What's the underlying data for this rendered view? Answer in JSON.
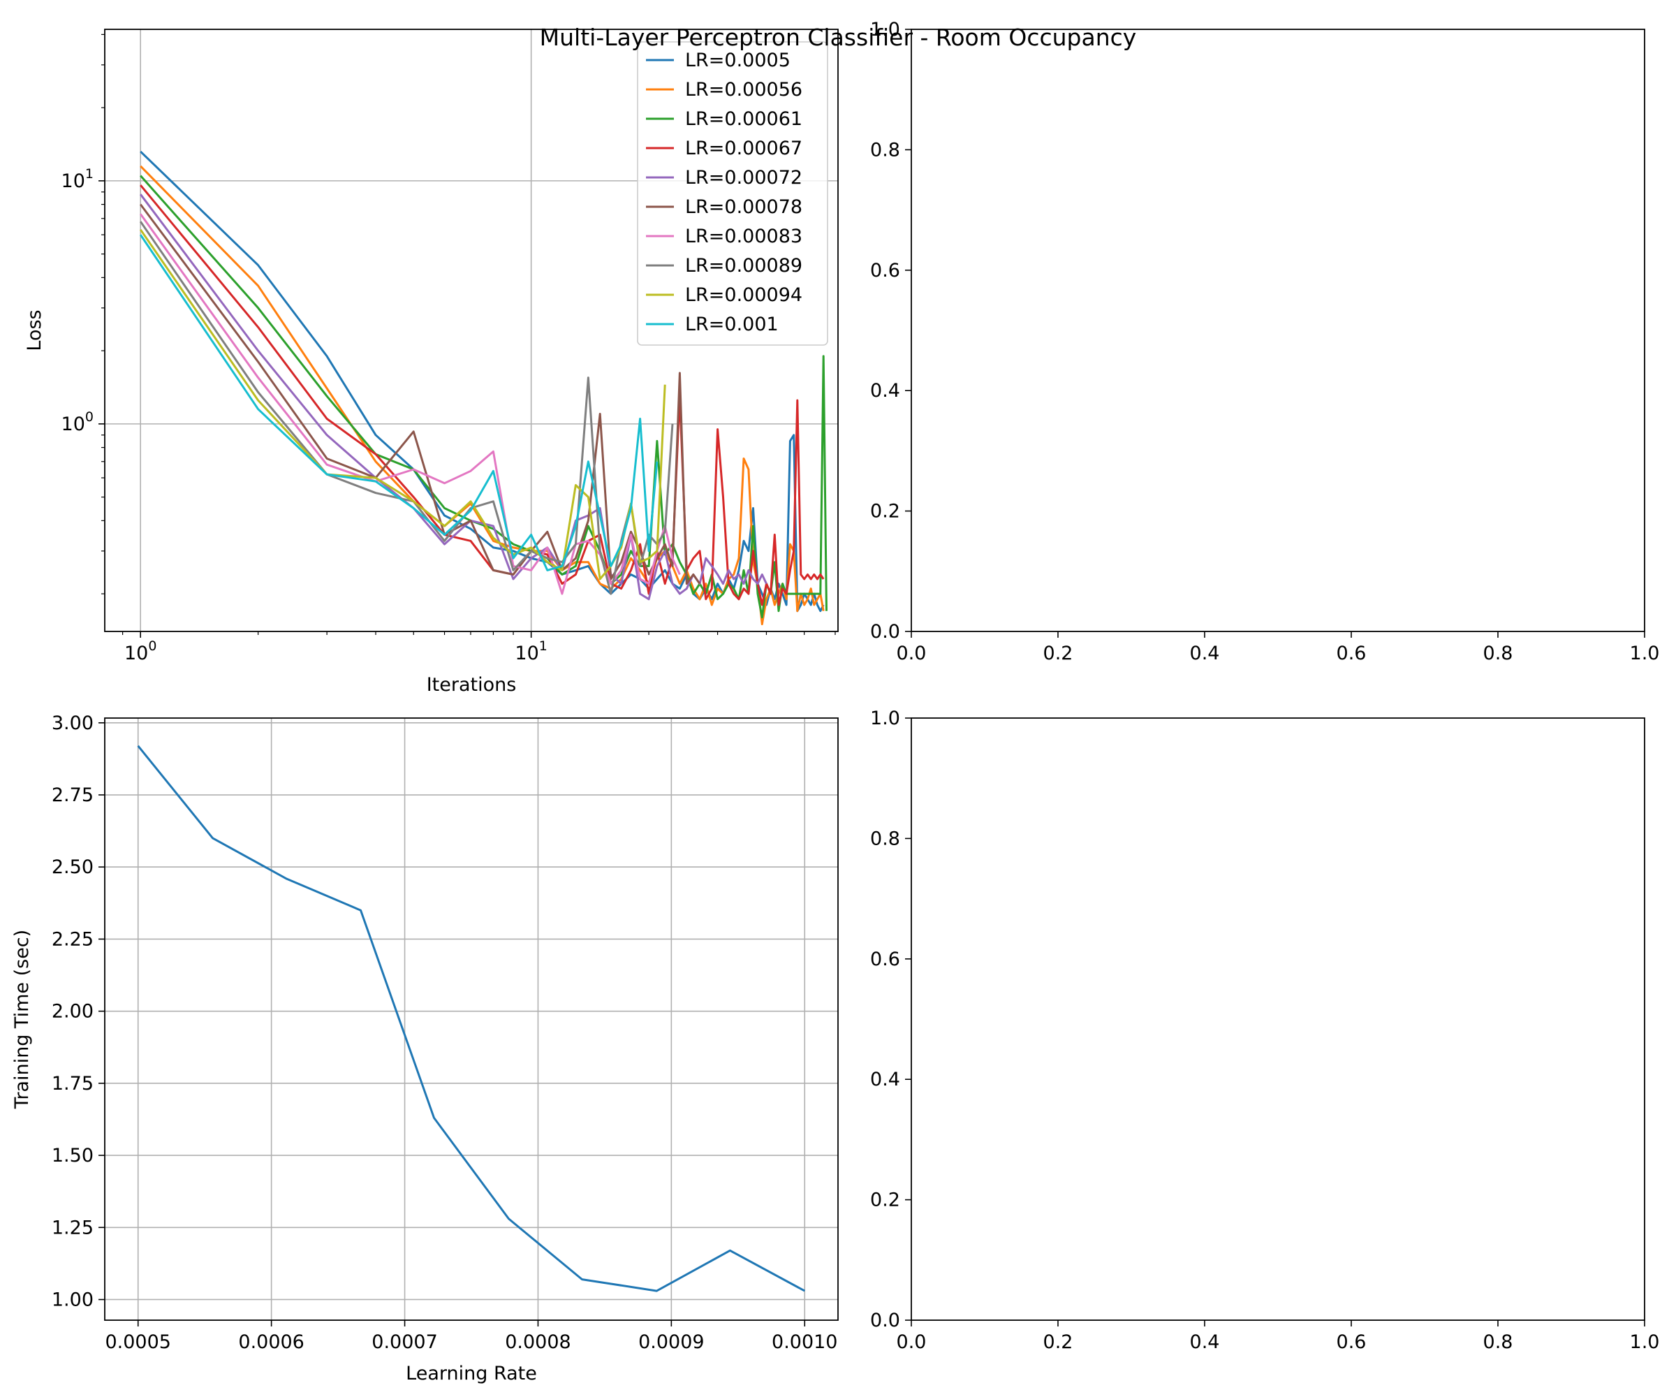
{
  "chart_data": [
    {
      "type": "line",
      "xlabel": "Iterations",
      "ylabel": "Loss",
      "xscale": "log",
      "yscale": "log",
      "xlim": [
        0.81,
        61
      ],
      "ylim": [
        0.14,
        42
      ],
      "x_ticks": [
        {
          "base": "10",
          "exp": "0"
        },
        {
          "base": "10",
          "exp": "1"
        }
      ],
      "y_ticks": [
        {
          "base": "10",
          "exp": "0"
        },
        {
          "base": "10",
          "exp": "1"
        }
      ],
      "grid": true,
      "legend": "top-right",
      "series": [
        {
          "name": "LR=0.0005",
          "color": "#1f77b4",
          "x": [
            1,
            2,
            3,
            4,
            5,
            6,
            7,
            8,
            9,
            10,
            11,
            12,
            13,
            14,
            15,
            16,
            17,
            18,
            19,
            20,
            21,
            22,
            23,
            24,
            25,
            26,
            27,
            28,
            29,
            30,
            31,
            32,
            33,
            34,
            35,
            36,
            37,
            38,
            39,
            40,
            41,
            42,
            43,
            44,
            45,
            46,
            47,
            48,
            49,
            50,
            51,
            52,
            53,
            54,
            55,
            56
          ],
          "y": [
            13.2,
            4.5,
            1.9,
            0.9,
            0.65,
            0.42,
            0.37,
            0.31,
            0.3,
            0.28,
            0.27,
            0.24,
            0.25,
            0.26,
            0.22,
            0.2,
            0.22,
            0.24,
            0.23,
            0.21,
            0.23,
            0.25,
            0.22,
            0.21,
            0.24,
            0.2,
            0.19,
            0.21,
            0.19,
            0.22,
            0.2,
            0.23,
            0.21,
            0.25,
            0.33,
            0.3,
            0.45,
            0.22,
            0.2,
            0.18,
            0.21,
            0.19,
            0.22,
            0.2,
            0.18,
            0.85,
            0.9,
            0.17,
            0.18,
            0.2,
            0.19,
            0.18,
            0.2,
            0.18,
            0.17,
            0.18
          ]
        },
        {
          "name": "LR=0.00056",
          "color": "#ff7f0e",
          "x": [
            1,
            2,
            3,
            4,
            5,
            6,
            7,
            8,
            9,
            10,
            11,
            12,
            13,
            14,
            15,
            16,
            17,
            18,
            19,
            20,
            21,
            22,
            23,
            24,
            25,
            26,
            27,
            28,
            29,
            30,
            31,
            32,
            33,
            34,
            35,
            36,
            37,
            38,
            39,
            40,
            41,
            42,
            43,
            44,
            45,
            46,
            47,
            48,
            49,
            50,
            51,
            52,
            53,
            54,
            55,
            56
          ],
          "y": [
            11.5,
            3.7,
            1.4,
            0.7,
            0.48,
            0.38,
            0.47,
            0.33,
            0.31,
            0.3,
            0.3,
            0.25,
            0.27,
            0.27,
            0.22,
            0.21,
            0.23,
            0.28,
            0.25,
            0.22,
            0.28,
            0.3,
            0.26,
            0.22,
            0.25,
            0.21,
            0.19,
            0.22,
            0.18,
            0.21,
            0.2,
            0.23,
            0.24,
            0.28,
            0.72,
            0.65,
            0.27,
            0.22,
            0.15,
            0.19,
            0.21,
            0.18,
            0.2,
            0.22,
            0.19,
            0.32,
            0.3,
            0.17,
            0.2,
            0.18,
            0.19,
            0.21,
            0.18,
            0.19,
            0.2,
            0.17
          ]
        },
        {
          "name": "LR=0.00061",
          "color": "#2ca02c",
          "x": [
            1,
            2,
            3,
            4,
            5,
            6,
            7,
            8,
            9,
            10,
            11,
            12,
            13,
            14,
            15,
            16,
            17,
            18,
            19,
            20,
            21,
            22,
            23,
            24,
            25,
            26,
            27,
            28,
            29,
            30,
            31,
            32,
            33,
            34,
            35,
            36,
            37,
            38,
            39,
            40,
            41,
            42,
            43,
            44,
            45,
            46,
            47,
            48,
            49,
            50,
            51,
            52,
            53,
            54,
            55,
            56,
            57
          ],
          "y": [
            10.5,
            3.0,
            1.3,
            0.75,
            0.65,
            0.45,
            0.4,
            0.37,
            0.32,
            0.3,
            0.28,
            0.24,
            0.26,
            0.38,
            0.3,
            0.22,
            0.24,
            0.3,
            0.26,
            0.26,
            0.85,
            0.29,
            0.32,
            0.27,
            0.24,
            0.2,
            0.22,
            0.2,
            0.24,
            0.19,
            0.2,
            0.22,
            0.21,
            0.19,
            0.25,
            0.2,
            0.38,
            0.2,
            0.16,
            0.22,
            0.2,
            0.27,
            0.17,
            0.22,
            0.2,
            0.2,
            0.2,
            0.2,
            0.2,
            0.2,
            0.2,
            0.2,
            0.2,
            0.2,
            0.2,
            1.9,
            0.17
          ]
        },
        {
          "name": "LR=0.00067",
          "color": "#d62728",
          "x": [
            1,
            2,
            3,
            4,
            5,
            6,
            7,
            8,
            9,
            10,
            11,
            12,
            13,
            14,
            15,
            16,
            17,
            18,
            19,
            20,
            21,
            22,
            23,
            24,
            25,
            26,
            27,
            28,
            29,
            30,
            31,
            32,
            33,
            34,
            35,
            36,
            37,
            38,
            39,
            40,
            41,
            42,
            43,
            44,
            45,
            46,
            47,
            48,
            49,
            50,
            51,
            52,
            53,
            54,
            55,
            56
          ],
          "y": [
            9.6,
            2.5,
            1.05,
            0.75,
            0.5,
            0.35,
            0.33,
            0.25,
            0.24,
            0.3,
            0.29,
            0.22,
            0.24,
            0.33,
            0.35,
            0.22,
            0.21,
            0.25,
            0.32,
            0.2,
            0.3,
            0.22,
            0.28,
            1.3,
            0.25,
            0.28,
            0.3,
            0.19,
            0.21,
            0.95,
            0.5,
            0.22,
            0.2,
            0.19,
            0.21,
            0.2,
            0.3,
            0.22,
            0.18,
            0.22,
            0.2,
            0.35,
            0.18,
            0.21,
            0.2,
            0.25,
            0.3,
            1.25,
            0.24,
            0.23,
            0.24,
            0.23,
            0.24,
            0.23,
            0.24,
            0.23
          ]
        },
        {
          "name": "LR=0.00072",
          "color": "#9467bd",
          "x": [
            1,
            2,
            3,
            4,
            5,
            6,
            7,
            8,
            9,
            10,
            11,
            12,
            13,
            14,
            15,
            16,
            17,
            18,
            19,
            20,
            21,
            22,
            23,
            24,
            25,
            26,
            27,
            28,
            29,
            30,
            31,
            32,
            33,
            34,
            35,
            36,
            37,
            38,
            39,
            40
          ],
          "y": [
            8.8,
            2.0,
            0.9,
            0.6,
            0.45,
            0.32,
            0.4,
            0.38,
            0.23,
            0.28,
            0.31,
            0.25,
            0.4,
            0.42,
            0.45,
            0.24,
            0.22,
            0.35,
            0.2,
            0.19,
            0.26,
            0.3,
            0.22,
            0.2,
            0.21,
            0.24,
            0.22,
            0.28,
            0.26,
            0.24,
            0.22,
            0.25,
            0.23,
            0.24,
            0.22,
            0.25,
            0.23,
            0.22,
            0.24,
            0.22
          ]
        },
        {
          "name": "LR=0.00078",
          "color": "#8c564b",
          "x": [
            1,
            2,
            3,
            4,
            5,
            6,
            7,
            8,
            9,
            10,
            11,
            12,
            13,
            14,
            15,
            16,
            17,
            18,
            19,
            20,
            21,
            22,
            23,
            24,
            25,
            26,
            27
          ],
          "y": [
            8.0,
            1.8,
            0.72,
            0.6,
            0.93,
            0.35,
            0.4,
            0.25,
            0.24,
            0.3,
            0.36,
            0.25,
            0.28,
            0.4,
            1.1,
            0.23,
            0.27,
            0.36,
            0.3,
            0.24,
            0.28,
            0.32,
            0.26,
            1.62,
            0.22,
            0.24,
            0.22
          ]
        },
        {
          "name": "LR=0.00083",
          "color": "#e377c2",
          "x": [
            1,
            2,
            3,
            4,
            5,
            6,
            7,
            8,
            9,
            10,
            11,
            12,
            13,
            14,
            15,
            16,
            17,
            18,
            19,
            20,
            21,
            22,
            23,
            24
          ],
          "y": [
            7.3,
            1.55,
            0.68,
            0.58,
            0.65,
            0.57,
            0.64,
            0.77,
            0.26,
            0.25,
            0.31,
            0.2,
            0.32,
            0.33,
            0.29,
            0.22,
            0.25,
            0.35,
            0.23,
            0.22,
            0.3,
            0.38,
            0.28,
            0.24
          ]
        },
        {
          "name": "LR=0.00089",
          "color": "#7f7f7f",
          "x": [
            1,
            2,
            3,
            4,
            5,
            6,
            7,
            8,
            9,
            10,
            11,
            12,
            13,
            14,
            15,
            16,
            17,
            18,
            19,
            20,
            21,
            22,
            23
          ],
          "y": [
            6.8,
            1.35,
            0.62,
            0.52,
            0.48,
            0.33,
            0.45,
            0.48,
            0.25,
            0.3,
            0.28,
            0.27,
            0.32,
            1.55,
            0.3,
            0.2,
            0.33,
            0.47,
            0.26,
            0.35,
            0.32,
            0.36,
            1.0
          ]
        },
        {
          "name": "LR=0.00094",
          "color": "#bcbd22",
          "x": [
            1,
            2,
            3,
            4,
            5,
            6,
            7,
            8,
            9,
            10,
            11,
            12,
            13,
            14,
            15,
            16,
            17,
            18,
            19,
            20,
            21,
            22
          ],
          "y": [
            6.3,
            1.25,
            0.62,
            0.6,
            0.48,
            0.38,
            0.48,
            0.34,
            0.29,
            0.31,
            0.27,
            0.25,
            0.56,
            0.5,
            0.23,
            0.26,
            0.31,
            0.47,
            0.27,
            0.28,
            0.3,
            1.45
          ]
        },
        {
          "name": "LR=0.001",
          "color": "#17becf",
          "x": [
            1,
            2,
            3,
            4,
            5,
            6,
            7,
            8,
            9,
            10,
            11,
            12,
            13,
            14,
            15,
            16,
            17,
            18,
            19,
            20,
            21
          ],
          "y": [
            6.0,
            1.15,
            0.62,
            0.58,
            0.45,
            0.35,
            0.44,
            0.64,
            0.28,
            0.35,
            0.25,
            0.26,
            0.38,
            0.7,
            0.42,
            0.26,
            0.32,
            0.45,
            1.05,
            0.3,
            0.7
          ]
        }
      ]
    },
    {
      "type": "line",
      "xlim": [
        0,
        1
      ],
      "ylim": [
        0,
        1
      ],
      "x_ticks": [
        "0.0",
        "0.2",
        "0.4",
        "0.6",
        "0.8",
        "1.0"
      ],
      "y_ticks": [
        "0.0",
        "0.2",
        "0.4",
        "0.6",
        "0.8",
        "1.0"
      ],
      "grid": false,
      "series": []
    },
    {
      "type": "line",
      "xlabel": "Learning Rate",
      "ylabel": "Training Time (sec)",
      "xlim": [
        0.000475,
        0.001025
      ],
      "ylim": [
        0.9285,
        3.0165
      ],
      "x_ticks": [
        "0.0005",
        "0.0006",
        "0.0007",
        "0.0008",
        "0.0009",
        "0.0010"
      ],
      "y_ticks": [
        "1.00",
        "1.25",
        "1.50",
        "1.75",
        "2.00",
        "2.25",
        "2.50",
        "2.75",
        "3.00"
      ],
      "grid": true,
      "series": [
        {
          "color": "#1f77b4",
          "x": [
            0.0005,
            0.000556,
            0.000611,
            0.000667,
            0.000722,
            0.000778,
            0.000833,
            0.000889,
            0.000944,
            0.001
          ],
          "y": [
            2.92,
            2.6,
            2.46,
            2.35,
            1.63,
            1.28,
            1.07,
            1.03,
            1.17,
            1.03
          ]
        }
      ]
    },
    {
      "type": "line",
      "xlim": [
        0,
        1
      ],
      "ylim": [
        0,
        1
      ],
      "x_ticks": [
        "0.0",
        "0.2",
        "0.4",
        "0.6",
        "0.8",
        "1.0"
      ],
      "y_ticks": [
        "0.0",
        "0.2",
        "0.4",
        "0.6",
        "0.8",
        "1.0"
      ],
      "grid": false,
      "series": []
    }
  ],
  "figure": {
    "suptitle": "Multi-Layer Perceptron Classifier - Room Occupancy"
  }
}
